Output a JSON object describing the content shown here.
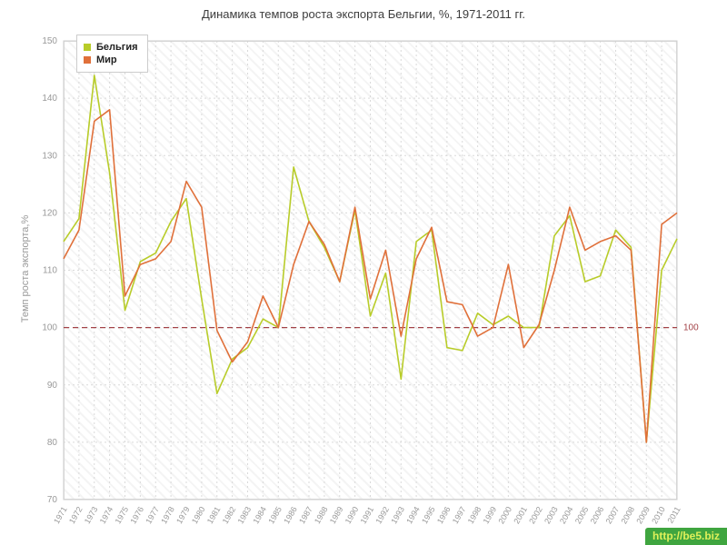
{
  "title": "Динамика темпов роста экспорта Бельгии, %, 1971-2011 гг.",
  "watermark": {
    "text": "http://be5.biz",
    "bg": "#3fa53f",
    "color": "#dff05a"
  },
  "chart_data": {
    "type": "line",
    "title": "Динамика темпов роста экспорта Бельгии, %, 1971-2011 гг.",
    "ylabel": "Темп роста экспорта,%",
    "xlabel": "",
    "ylim": [
      70,
      150
    ],
    "yticks": [
      70,
      80,
      90,
      100,
      110,
      120,
      130,
      140,
      150
    ],
    "grid": true,
    "legend_position": "top-left",
    "reference_line": {
      "value": 100,
      "label": "100",
      "color": "#a34247"
    },
    "x": [
      1971,
      1972,
      1973,
      1974,
      1975,
      1976,
      1977,
      1978,
      1979,
      1980,
      1981,
      1982,
      1983,
      1984,
      1985,
      1986,
      1987,
      1988,
      1989,
      1990,
      1991,
      1992,
      1993,
      1994,
      1995,
      1996,
      1997,
      1998,
      1999,
      2000,
      2001,
      2002,
      2003,
      2004,
      2005,
      2006,
      2007,
      2008,
      2009,
      2010,
      2011
    ],
    "series": [
      {
        "name": "Бельгия",
        "color": "#b8cc29",
        "values": [
          115,
          119,
          144,
          127,
          103,
          111.5,
          113,
          118.5,
          122.5,
          105,
          88.5,
          94.5,
          96.5,
          101.5,
          100,
          128,
          118.5,
          114,
          108,
          120.5,
          102,
          109.5,
          91,
          115,
          117,
          96.5,
          96,
          102.5,
          100.5,
          102,
          100,
          100,
          116,
          119.5,
          108,
          109,
          117,
          114,
          80,
          110,
          115.5
        ]
      },
      {
        "name": "Мир",
        "color": "#e0703a",
        "values": [
          112,
          117,
          136,
          138,
          105.5,
          111,
          112,
          115,
          125.5,
          121,
          99.5,
          94,
          97.5,
          105.5,
          100,
          111,
          118.5,
          114.5,
          108,
          121,
          105,
          113.5,
          98.5,
          112,
          117.5,
          104.5,
          104,
          98.5,
          100,
          111,
          96.5,
          100.5,
          110,
          121,
          113.5,
          115,
          116,
          113.5,
          80,
          118,
          120
        ]
      }
    ]
  }
}
